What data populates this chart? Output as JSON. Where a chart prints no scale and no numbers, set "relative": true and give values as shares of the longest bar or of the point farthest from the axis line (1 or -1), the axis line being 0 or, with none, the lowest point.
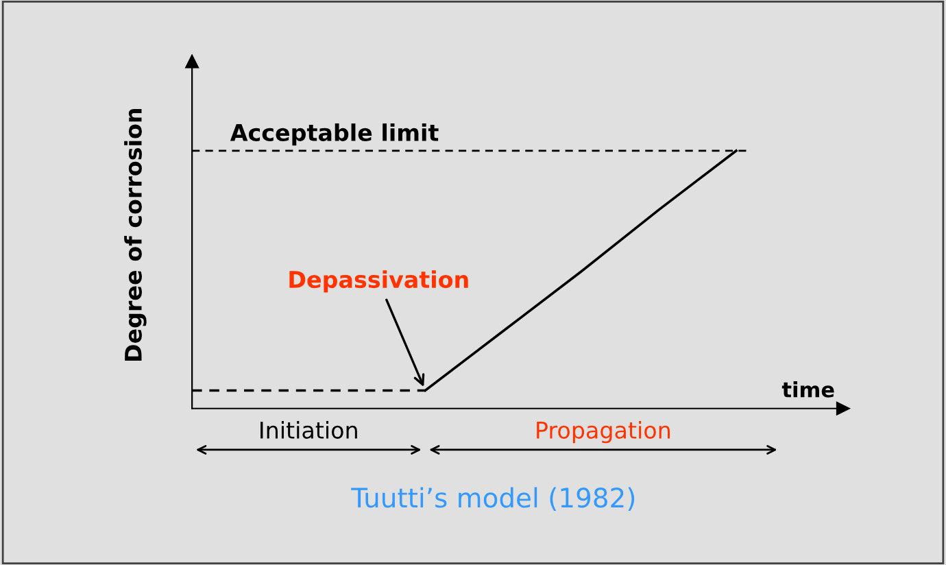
{
  "chart_data": {
    "type": "line",
    "relative": true,
    "xlabel": "time",
    "ylabel": "Degree of corrosion",
    "marker": "none",
    "categories": [
      null,
      null,
      null,
      null,
      null,
      null,
      null,
      null
    ],
    "series": [
      {
        "values": [
          0.07,
          0.07,
          0.07,
          0.07,
          null,
          null,
          null,
          null
        ],
        "color": "#000000",
        "line_style": "dashed"
      },
      {
        "values": [
          null,
          null,
          null,
          0.07,
          0.3,
          0.53,
          0.77,
          1
        ],
        "color": "#000000",
        "line_style": "solid"
      }
    ],
    "ref_lines": [
      {
        "axis": "y",
        "value": 1,
        "label": "Acceptable limit",
        "line_style": "dashed",
        "color": "#000000"
      }
    ],
    "annotations": [
      "Depassivation",
      "Initiation",
      "Propagation",
      "Tuutti’s model (1982)"
    ]
  }
}
